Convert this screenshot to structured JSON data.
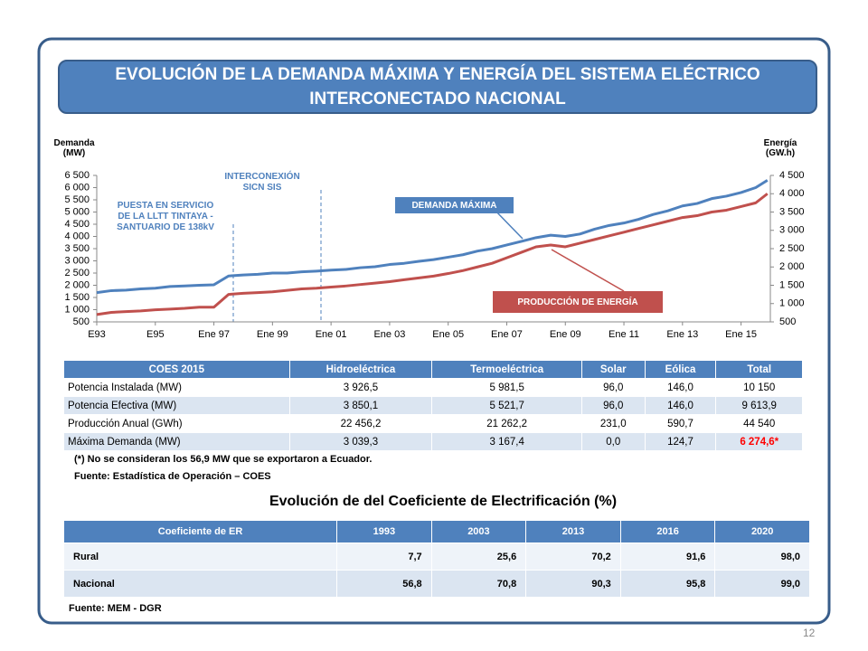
{
  "title": "EVOLUCIÓN DE LA DEMANDA MÁXIMA Y ENERGÍA DEL SISTEMA ELÉCTRICO INTERCONECTADO NACIONAL",
  "chart_data": {
    "type": "line",
    "y_label": "Demanda (MW)",
    "y2_label": "Energía (GW.h)",
    "annotations": [
      "PUESTA EN SERVICIO DE LA LLTT TINTAYA - SANTUARIO DE 138kV",
      "INTERCONEXIÓN SICN SIS"
    ],
    "x": [
      1993,
      1993.5,
      1994,
      1994.5,
      1995,
      1995.5,
      1996,
      1996.5,
      1997,
      1997.5,
      1998,
      1998.5,
      1999,
      1999.5,
      2000,
      2000.5,
      2001,
      2001.5,
      2002,
      2002.5,
      2003,
      2003.5,
      2004,
      2004.5,
      2005,
      2005.5,
      2006,
      2006.5,
      2007,
      2007.5,
      2008,
      2008.5,
      2009,
      2009.5,
      2010,
      2010.5,
      2011,
      2011.5,
      2012,
      2012.5,
      2013,
      2013.5,
      2014,
      2014.5,
      2015,
      2015.5,
      2015.9
    ],
    "series": [
      {
        "name": "DEMANDA MÁXIMA",
        "color": "#4f81bd",
        "values": [
          1700,
          1780,
          1800,
          1850,
          1880,
          1950,
          1970,
          2000,
          2020,
          2380,
          2420,
          2450,
          2500,
          2500,
          2550,
          2580,
          2620,
          2650,
          2720,
          2760,
          2850,
          2900,
          2980,
          3050,
          3150,
          3250,
          3400,
          3500,
          3650,
          3800,
          3950,
          4050,
          4000,
          4100,
          4300,
          4450,
          4550,
          4700,
          4900,
          5050,
          5250,
          5350,
          5550,
          5650,
          5800,
          6000,
          6300
        ]
      },
      {
        "name": "PRODUCCIÓN DE ENERGÍA",
        "color": "#c0504d",
        "axis": "y2",
        "values": [
          700,
          760,
          780,
          800,
          830,
          850,
          870,
          900,
          900,
          1250,
          1280,
          1300,
          1320,
          1360,
          1400,
          1420,
          1450,
          1480,
          1520,
          1560,
          1600,
          1650,
          1700,
          1750,
          1820,
          1900,
          2000,
          2100,
          2250,
          2400,
          2550,
          2600,
          2550,
          2650,
          2750,
          2850,
          2950,
          3050,
          3150,
          3250,
          3350,
          3400,
          3500,
          3550,
          3650,
          3750,
          4000
        ]
      }
    ],
    "xlim": [
      1993,
      2016
    ],
    "xticks": [
      {
        "value": 1993,
        "label": "E93"
      },
      {
        "value": 1995,
        "label": "E95"
      },
      {
        "value": 1997,
        "label": "Ene 97"
      },
      {
        "value": 1999,
        "label": "Ene 99"
      },
      {
        "value": 2001,
        "label": "Ene 01"
      },
      {
        "value": 2003,
        "label": "Ene 03"
      },
      {
        "value": 2005,
        "label": "Ene 05"
      },
      {
        "value": 2007,
        "label": "Ene 07"
      },
      {
        "value": 2009,
        "label": "Ene 09"
      },
      {
        "value": 2011,
        "label": "Ene 11"
      },
      {
        "value": 2013,
        "label": "Ene 13"
      },
      {
        "value": 2015,
        "label": "Ene 15"
      }
    ],
    "ylim": [
      500,
      6500
    ],
    "yticks": [
      500,
      {
        "value": 1000,
        "label": "1 000"
      },
      {
        "value": 1500,
        "label": "1 500"
      },
      {
        "value": 2000,
        "label": "2 000"
      },
      {
        "value": 2500,
        "label": "2 500"
      },
      {
        "value": 3000,
        "label": "3 000"
      },
      {
        "value": 3500,
        "label": "3 500"
      },
      {
        "value": 4000,
        "label": "4 000"
      },
      {
        "value": 4500,
        "label": "4 500"
      },
      {
        "value": 5000,
        "label": "5 000"
      },
      {
        "value": 5500,
        "label": "5 500"
      },
      {
        "value": 6000,
        "label": "6 000"
      },
      {
        "value": 6500,
        "label": "6 500"
      }
    ],
    "y2lim": [
      500,
      4500
    ],
    "y2ticks": [
      500,
      {
        "value": 1000,
        "label": "1 000"
      },
      {
        "value": 1500,
        "label": "1 500"
      },
      {
        "value": 2000,
        "label": "2 000"
      },
      {
        "value": 2500,
        "label": "2 500"
      },
      {
        "value": 3000,
        "label": "3 000"
      },
      {
        "value": 3500,
        "label": "3 500"
      },
      {
        "value": 4000,
        "label": "4 000"
      },
      {
        "value": 4500,
        "label": "4 500"
      }
    ]
  },
  "table1": {
    "header": [
      "COES 2015",
      "Hidroeléctrica",
      "Termoeléctrica",
      "Solar",
      "Eólica",
      "Total"
    ],
    "rows": [
      [
        "Potencia Instalada (MW)",
        "3 926,5",
        "5 981,5",
        "96,0",
        "146,0",
        "10 150"
      ],
      [
        "Potencia Efectiva (MW)",
        "3 850,1",
        "5 521,7",
        "96,0",
        "146,0",
        "9 613,9"
      ],
      [
        "Producción Anual (GWh)",
        "22 456,2",
        "21 262,2",
        "231,0",
        "590,7",
        "44 540"
      ],
      [
        "Máxima Demanda (MW)",
        "3 039,3",
        "3 167,4",
        "0,0",
        "124,7",
        "6 274,6*"
      ]
    ]
  },
  "note": "(*) No se consideran los 56,9 MW que se exportaron a Ecuador.",
  "source1": "Fuente: Estadística de Operación – COES",
  "subtitle": "Evolución de del Coeficiente de Electrificación (%)",
  "table2": {
    "header": [
      "Coeficiente de ER",
      "1993",
      "2003",
      "2013",
      "2016",
      "2020"
    ],
    "rows": [
      [
        "Rural",
        "7,7",
        "25,6",
        "70,2",
        "91,6",
        "98,0"
      ],
      [
        "Nacional",
        "56,8",
        "70,8",
        "90,3",
        "95,8",
        "99,0"
      ]
    ]
  },
  "source2": "Fuente: MEM - DGR",
  "page_number": "12"
}
